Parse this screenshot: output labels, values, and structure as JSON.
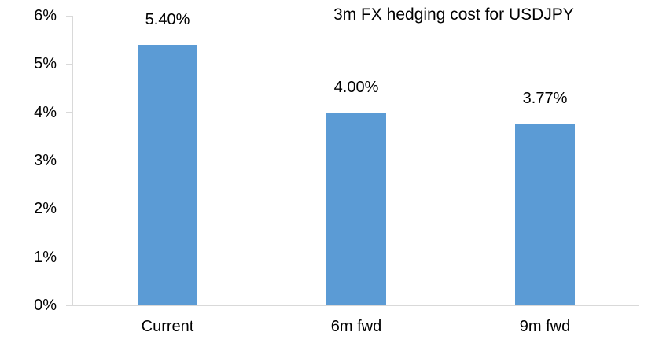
{
  "chart_data": {
    "type": "bar",
    "title": "3m FX hedging cost for USDJPY",
    "categories": [
      "Current",
      "6m fwd",
      "9m fwd"
    ],
    "values": [
      5.4,
      4.0,
      3.77
    ],
    "data_labels": [
      "5.40%",
      "4.00%",
      "3.77%"
    ],
    "y_ticks": [
      "0%",
      "1%",
      "2%",
      "3%",
      "4%",
      "5%",
      "6%"
    ],
    "ylim": [
      0,
      6
    ],
    "xlabel": "",
    "ylabel": "",
    "grid": false,
    "legend": "none",
    "bar_color": "#5B9BD5",
    "axis_color": "#D9D9D9",
    "text_color": "#000000"
  }
}
